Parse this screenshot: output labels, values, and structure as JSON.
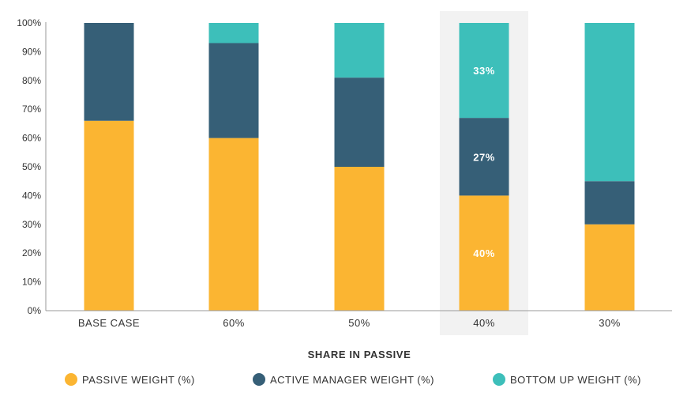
{
  "chart_data": {
    "type": "bar",
    "stacked": true,
    "categories": [
      "BASE CASE",
      "60%",
      "50%",
      "40%",
      "30%"
    ],
    "series": [
      {
        "name": "PASSIVE WEIGHT (%)",
        "color": "#FBB532",
        "values": [
          66,
          60,
          50,
          40,
          30
        ]
      },
      {
        "name": "ACTIVE MANAGER WEIGHT (%)",
        "color": "#365F77",
        "values": [
          34,
          33,
          31,
          27,
          15
        ]
      },
      {
        "name": "BOTTOM UP WEIGHT (%)",
        "color": "#3DBFBA",
        "values": [
          0,
          7,
          19,
          33,
          55
        ]
      }
    ],
    "highlighted_category": "40%",
    "highlight_color": "#F2F2F2",
    "data_labels": {
      "category": "40%",
      "labels": [
        "40%",
        "27%",
        "33%"
      ]
    },
    "xlabel": "SHARE IN PASSIVE",
    "ylabel": "",
    "ylim": [
      0,
      100
    ],
    "yticks": [
      "0%",
      "10%",
      "20%",
      "30%",
      "40%",
      "50%",
      "60%",
      "70%",
      "80%",
      "90%",
      "100%"
    ],
    "grid": false,
    "legend_position": "bottom"
  }
}
